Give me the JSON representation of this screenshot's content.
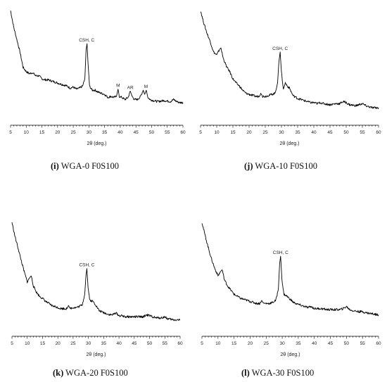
{
  "chart_data": [
    {
      "type": "line",
      "caption_letter": "(i)",
      "caption_text": "WGA-0 F0S100",
      "xlabel": "2θ (deg.)",
      "xlim": [
        5,
        60
      ],
      "ylim": [
        0,
        100
      ],
      "xticks": [
        5,
        10,
        15,
        20,
        25,
        30,
        35,
        40,
        45,
        50,
        55,
        60
      ],
      "points": [
        [
          5,
          100
        ],
        [
          6,
          84
        ],
        [
          7,
          72
        ],
        [
          8,
          60
        ],
        [
          9,
          45
        ],
        [
          10,
          41
        ],
        [
          11,
          39
        ],
        [
          12,
          40
        ],
        [
          13,
          37
        ],
        [
          14,
          37
        ],
        [
          15,
          34
        ],
        [
          16,
          33
        ],
        [
          17,
          33
        ],
        [
          18,
          32
        ],
        [
          19,
          31
        ],
        [
          20,
          30
        ],
        [
          21,
          29
        ],
        [
          22,
          28
        ],
        [
          23,
          27
        ],
        [
          24,
          25
        ],
        [
          25,
          26
        ],
        [
          26,
          24
        ],
        [
          27,
          25
        ],
        [
          28,
          27
        ],
        [
          28.7,
          34
        ],
        [
          29.1,
          62
        ],
        [
          29.4,
          68
        ],
        [
          29.7,
          50
        ],
        [
          30.2,
          27
        ],
        [
          31,
          23
        ],
        [
          32,
          23
        ],
        [
          33,
          21
        ],
        [
          34,
          20
        ],
        [
          35,
          19
        ],
        [
          36,
          16
        ],
        [
          37,
          17
        ],
        [
          38,
          16
        ],
        [
          38.8,
          17
        ],
        [
          39.3,
          24
        ],
        [
          39.7,
          17
        ],
        [
          40.5,
          16
        ],
        [
          41.5,
          14
        ],
        [
          42.5,
          16
        ],
        [
          43.2,
          22
        ],
        [
          43.8,
          17
        ],
        [
          44.5,
          14
        ],
        [
          45.5,
          14
        ],
        [
          46.5,
          17
        ],
        [
          47.3,
          23
        ],
        [
          47.8,
          19
        ],
        [
          48.3,
          23
        ],
        [
          48.8,
          16
        ],
        [
          49.5,
          14
        ],
        [
          50.5,
          13
        ],
        [
          52,
          12
        ],
        [
          54,
          13
        ],
        [
          56,
          12
        ],
        [
          57,
          14
        ],
        [
          58,
          12
        ],
        [
          59,
          11
        ],
        [
          60,
          11
        ]
      ],
      "annotations": [
        {
          "label": "CSH, C",
          "x": 29.3,
          "y": 68
        },
        {
          "label": "M",
          "x": 39.3,
          "y": 24
        },
        {
          "label": "AR",
          "x": 43.2,
          "y": 22
        },
        {
          "label": "M",
          "x": 48.2,
          "y": 23
        }
      ]
    },
    {
      "type": "line",
      "caption_letter": "(j)",
      "caption_text": "WGA-10 F0S100",
      "xlabel": "2θ (deg.)",
      "xlim": [
        5,
        60
      ],
      "ylim": [
        0,
        100
      ],
      "xticks": [
        5,
        10,
        15,
        20,
        25,
        30,
        35,
        40,
        45,
        50,
        55,
        60
      ],
      "points": [
        [
          5,
          100
        ],
        [
          6,
          88
        ],
        [
          7,
          78
        ],
        [
          8,
          70
        ],
        [
          9,
          60
        ],
        [
          10,
          57
        ],
        [
          10.8,
          62
        ],
        [
          11.3,
          64
        ],
        [
          12,
          54
        ],
        [
          13,
          46
        ],
        [
          14,
          41
        ],
        [
          15,
          34
        ],
        [
          16,
          30
        ],
        [
          17,
          27
        ],
        [
          18,
          23
        ],
        [
          19,
          20
        ],
        [
          20,
          19
        ],
        [
          21,
          18
        ],
        [
          22,
          17
        ],
        [
          23,
          17
        ],
        [
          23.6,
          20
        ],
        [
          24.2,
          17
        ],
        [
          25,
          17
        ],
        [
          26,
          18
        ],
        [
          27,
          19
        ],
        [
          28,
          20
        ],
        [
          28.8,
          30
        ],
        [
          29.2,
          50
        ],
        [
          29.6,
          60
        ],
        [
          30,
          40
        ],
        [
          30.6,
          24
        ],
        [
          31.2,
          30
        ],
        [
          31.8,
          27
        ],
        [
          32.5,
          25
        ],
        [
          33.5,
          18
        ],
        [
          35,
          15
        ],
        [
          36,
          14
        ],
        [
          37,
          13
        ],
        [
          38,
          12
        ],
        [
          39,
          11
        ],
        [
          40,
          11
        ],
        [
          41,
          10
        ],
        [
          42,
          11
        ],
        [
          43,
          10
        ],
        [
          45,
          9
        ],
        [
          47,
          10
        ],
        [
          48,
          10
        ],
        [
          49,
          12
        ],
        [
          50,
          11
        ],
        [
          51,
          9
        ],
        [
          53,
          8
        ],
        [
          54,
          9
        ],
        [
          55,
          10
        ],
        [
          56,
          8
        ],
        [
          58,
          6
        ],
        [
          60,
          6
        ]
      ],
      "annotations": [
        {
          "label": "CSH, C",
          "x": 29.6,
          "y": 60
        }
      ]
    },
    {
      "type": "line",
      "caption_letter": "(k)",
      "caption_text": "WGA-20 F0S100",
      "xlabel": "2θ (deg.)",
      "xlim": [
        5,
        60
      ],
      "ylim": [
        0,
        100
      ],
      "xticks": [
        5,
        10,
        15,
        20,
        25,
        30,
        35,
        40,
        45,
        50,
        55,
        60
      ],
      "points": [
        [
          5,
          100
        ],
        [
          6,
          86
        ],
        [
          7,
          75
        ],
        [
          8,
          63
        ],
        [
          9,
          52
        ],
        [
          10,
          42
        ],
        [
          10.8,
          46
        ],
        [
          11.3,
          48
        ],
        [
          12,
          38
        ],
        [
          13,
          32
        ],
        [
          14,
          28
        ],
        [
          15,
          26
        ],
        [
          16,
          23
        ],
        [
          17,
          21
        ],
        [
          18,
          19
        ],
        [
          19,
          18
        ],
        [
          20,
          17
        ],
        [
          21,
          16
        ],
        [
          22,
          16
        ],
        [
          23,
          16
        ],
        [
          23.5,
          19
        ],
        [
          24,
          16
        ],
        [
          25,
          17
        ],
        [
          26,
          17
        ],
        [
          27,
          18
        ],
        [
          28,
          20
        ],
        [
          28.8,
          30
        ],
        [
          29.2,
          48
        ],
        [
          29.5,
          55
        ],
        [
          29.9,
          36
        ],
        [
          30.5,
          24
        ],
        [
          31.5,
          23
        ],
        [
          32.5,
          19
        ],
        [
          33.5,
          14
        ],
        [
          35,
          12
        ],
        [
          36,
          11
        ],
        [
          37,
          10
        ],
        [
          38,
          10
        ],
        [
          39,
          12
        ],
        [
          40,
          9
        ],
        [
          41,
          9
        ],
        [
          42,
          8
        ],
        [
          44,
          8
        ],
        [
          46,
          8
        ],
        [
          48,
          8
        ],
        [
          49,
          10
        ],
        [
          50,
          9
        ],
        [
          52,
          7
        ],
        [
          54,
          7
        ],
        [
          55,
          8
        ],
        [
          56,
          6
        ],
        [
          58,
          5
        ],
        [
          60,
          5
        ]
      ],
      "annotations": [
        {
          "label": "CSH, C",
          "x": 29.5,
          "y": 55
        }
      ]
    },
    {
      "type": "line",
      "caption_letter": "(l)",
      "caption_text": "WGA-30 F0S100",
      "xlabel": "2θ (deg.)",
      "xlim": [
        5,
        60
      ],
      "ylim": [
        0,
        100
      ],
      "xticks": [
        5,
        10,
        15,
        20,
        25,
        30,
        35,
        40,
        45,
        50,
        55,
        60
      ],
      "points": [
        [
          5,
          100
        ],
        [
          6,
          87
        ],
        [
          7,
          75
        ],
        [
          8,
          64
        ],
        [
          9,
          55
        ],
        [
          10,
          48
        ],
        [
          10.8,
          52
        ],
        [
          11.3,
          54
        ],
        [
          12,
          44
        ],
        [
          13,
          38
        ],
        [
          14,
          34
        ],
        [
          15,
          30
        ],
        [
          16,
          28
        ],
        [
          17,
          26
        ],
        [
          18,
          25
        ],
        [
          19,
          24
        ],
        [
          20,
          23
        ],
        [
          21,
          22
        ],
        [
          22,
          21
        ],
        [
          23,
          21
        ],
        [
          23.6,
          24
        ],
        [
          24.2,
          21
        ],
        [
          25,
          21
        ],
        [
          26,
          21
        ],
        [
          27,
          22
        ],
        [
          28,
          24
        ],
        [
          28.8,
          35
        ],
        [
          29.2,
          60
        ],
        [
          29.5,
          67
        ],
        [
          29.9,
          45
        ],
        [
          30.5,
          30
        ],
        [
          31.5,
          28
        ],
        [
          32.5,
          25
        ],
        [
          33.5,
          22
        ],
        [
          35,
          20
        ],
        [
          36,
          19
        ],
        [
          37,
          18
        ],
        [
          38,
          17
        ],
        [
          39,
          18
        ],
        [
          40,
          16
        ],
        [
          42,
          16
        ],
        [
          44,
          15
        ],
        [
          46,
          15
        ],
        [
          48,
          15
        ],
        [
          49,
          16
        ],
        [
          50,
          18
        ],
        [
          51,
          15
        ],
        [
          52,
          14
        ],
        [
          54,
          13
        ],
        [
          55,
          13
        ],
        [
          56,
          12
        ],
        [
          58,
          11
        ],
        [
          60,
          10
        ]
      ],
      "annotations": [
        {
          "label": "CSH, C",
          "x": 29.5,
          "y": 67
        }
      ]
    }
  ]
}
